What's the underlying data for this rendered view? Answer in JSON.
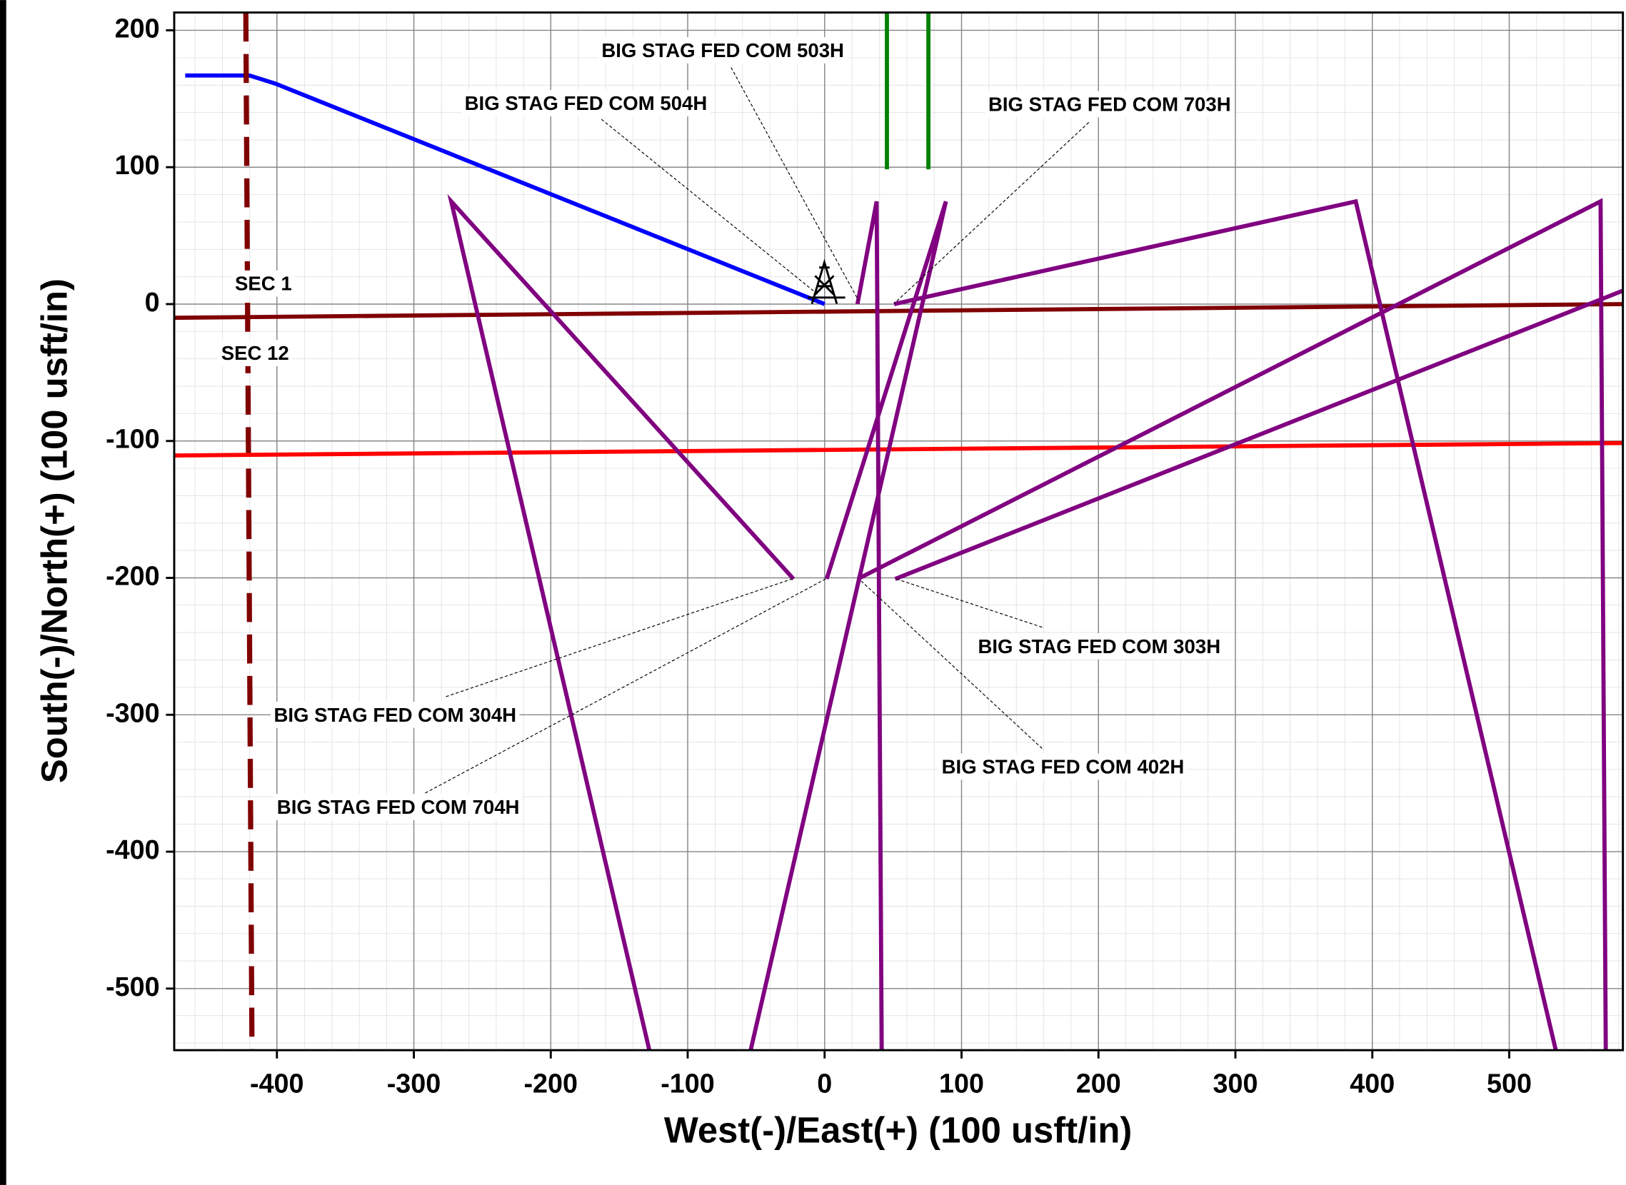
{
  "chart_data": {
    "type": "line",
    "xlabel": "West(-)/East(+) (100 usft/in)",
    "ylabel": "South(-)/North(+) (100 usft/in)",
    "xlim": [
      -475,
      583
    ],
    "ylim": [
      -545,
      213
    ],
    "xticks": [
      -400,
      -300,
      -200,
      -100,
      0,
      100,
      200,
      300,
      400,
      500
    ],
    "yticks": [
      -500,
      -400,
      -300,
      -200,
      -100,
      0,
      100,
      200
    ],
    "grid": true,
    "series": [
      {
        "color": "#0000ff",
        "x": [
          -467,
          -420,
          -401,
          0
        ],
        "y": [
          167,
          167,
          161,
          0
        ]
      },
      {
        "color": "#008000",
        "x": [
          45.5,
          45.5
        ],
        "y": [
          213,
          98.5
        ]
      },
      {
        "color": "#008000",
        "x": [
          75.8,
          75.8
        ],
        "y": [
          213,
          98.5
        ]
      },
      {
        "color": "#800000",
        "style": "dashed",
        "x": [
          -422.7,
          -418.2
        ],
        "y": [
          213,
          -545
        ]
      },
      {
        "color": "#800000",
        "x": [
          -475,
          583
        ],
        "y": [
          -10,
          0
        ]
      },
      {
        "color": "#ff0000",
        "x": [
          -475,
          583
        ],
        "y": [
          -110.6,
          -101.5
        ]
      },
      {
        "color": "#800080",
        "x": [
          -22.7,
          -272.7,
          -128
        ],
        "y": [
          -200.8,
          75,
          -545
        ]
      },
      {
        "color": "#800080",
        "x": [
          1.5,
          88.6,
          -54
        ],
        "y": [
          -200.8,
          75,
          -545
        ]
      },
      {
        "color": "#800080",
        "x": [
          24,
          38,
          41.7
        ],
        "y": [
          0,
          75,
          -545
        ]
      },
      {
        "color": "#800080",
        "x": [
          50.8,
          387.9,
          534
        ],
        "y": [
          0,
          75,
          -545
        ]
      },
      {
        "color": "#800080",
        "x": [
          24.2,
          566.7,
          570.5
        ],
        "y": [
          -200.8,
          75,
          -545
        ]
      },
      {
        "color": "#800080",
        "x": [
          51.5,
          583
        ],
        "y": [
          -200.8,
          9.8
        ]
      }
    ],
    "annotations": [
      "BIG STAG FED COM 503H",
      "BIG STAG FED COM 504H",
      "BIG STAG FED COM 703H",
      "BIG STAG FED COM 304H",
      "BIG STAG FED COM 704H",
      "BIG STAG FED COM 303H",
      "BIG STAG FED COM 402H",
      "SEC 1",
      "SEC 12"
    ]
  }
}
